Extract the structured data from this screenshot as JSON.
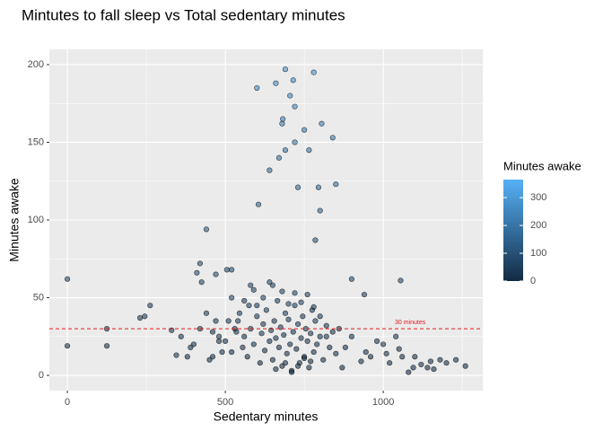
{
  "chart_data": {
    "type": "scatter",
    "title": "Mintutes to fall sleep vs Total sedentary minutes",
    "x_label": "Sedentary minutes",
    "y_label": "Minutes awake",
    "xlim": [
      -57,
      1315
    ],
    "ylim": [
      -9.8,
      209.8
    ],
    "xticks": [
      0,
      500,
      1000
    ],
    "yticks": [
      0,
      50,
      100,
      150,
      200
    ],
    "xminor": [
      250,
      750,
      1250
    ],
    "yminor": [
      25,
      75,
      125,
      175
    ],
    "grid": true,
    "hline": {
      "value": 30,
      "label": "30 minutes",
      "color": "#e41a1c"
    },
    "colorbar": {
      "title": "Minutes awake",
      "lim": [
        0,
        365
      ],
      "ticks": [
        0,
        100,
        200,
        300
      ],
      "low": "#132B43",
      "high": "#56B1F7"
    },
    "x": [
      0,
      0,
      125,
      125,
      230,
      245,
      262,
      330,
      345,
      390,
      410,
      420,
      425,
      440,
      450,
      460,
      470,
      480,
      505,
      520,
      530,
      600,
      605,
      640,
      660,
      670,
      680,
      682,
      690,
      690,
      705,
      715,
      720,
      720,
      730,
      750,
      765,
      780,
      785,
      795,
      800,
      805,
      840,
      850,
      900,
      940,
      1055,
      1100,
      1150,
      1200,
      1230,
      1260,
      1000,
      1010,
      1020,
      1040,
      1050,
      1060,
      1080,
      1095,
      1120,
      1140,
      1160,
      1180,
      960,
      980,
      930,
      945,
      900,
      880,
      870,
      860,
      500,
      510,
      520,
      535,
      545,
      555,
      560,
      570,
      575,
      580,
      590,
      600,
      610,
      615,
      620,
      625,
      630,
      640,
      645,
      650,
      655,
      660,
      665,
      670,
      675,
      680,
      685,
      690,
      695,
      700,
      705,
      710,
      715,
      720,
      725,
      730,
      735,
      740,
      745,
      750,
      755,
      760,
      765,
      770,
      775,
      780,
      785,
      790,
      800,
      810,
      820,
      830,
      840,
      850,
      560,
      590,
      620,
      650,
      680,
      700,
      720,
      740,
      760,
      780,
      800,
      820,
      660,
      690,
      710,
      730,
      750,
      770,
      640,
      600,
      580,
      540,
      520,
      480,
      470,
      490,
      460,
      440,
      420,
      400,
      380,
      360
    ],
    "values": [
      62,
      19,
      30,
      19,
      37,
      38,
      45,
      29,
      13,
      18,
      66,
      72,
      60,
      94,
      10,
      12,
      65,
      25,
      68,
      68,
      30,
      185,
      110,
      132,
      188,
      140,
      162,
      165,
      197,
      145,
      180,
      190,
      150,
      173,
      121,
      158,
      145,
      195,
      87,
      121,
      106,
      162,
      153,
      123,
      62,
      52,
      61,
      12,
      9,
      8,
      10,
      6,
      20,
      14,
      8,
      25,
      17,
      12,
      2,
      5,
      7,
      5,
      4,
      10,
      12,
      22,
      9,
      15,
      25,
      18,
      5,
      30,
      22,
      35,
      15,
      28,
      40,
      18,
      25,
      12,
      45,
      30,
      20,
      38,
      8,
      27,
      33,
      16,
      42,
      22,
      29,
      10,
      35,
      24,
      48,
      18,
      31,
      6,
      26,
      40,
      14,
      36,
      20,
      3,
      28,
      45,
      17,
      33,
      8,
      24,
      38,
      12,
      30,
      22,
      5,
      27,
      42,
      15,
      35,
      20,
      25,
      10,
      32,
      18,
      28,
      14,
      48,
      55,
      50,
      58,
      54,
      46,
      53,
      47,
      52,
      44,
      38,
      25,
      4,
      8,
      2,
      6,
      11,
      9,
      60,
      45,
      58,
      35,
      50,
      22,
      35,
      15,
      28,
      40,
      30,
      20,
      12,
      25
    ],
    "color_values": [
      80,
      25,
      40,
      28,
      50,
      52,
      60,
      38,
      20,
      25,
      90,
      95,
      80,
      130,
      15,
      18,
      85,
      35,
      90,
      92,
      40,
      260,
      150,
      180,
      270,
      190,
      220,
      230,
      280,
      200,
      250,
      270,
      210,
      240,
      170,
      220,
      200,
      290,
      120,
      170,
      150,
      230,
      210,
      180,
      85,
      70,
      80,
      18,
      14,
      12,
      15,
      10,
      28,
      20,
      12,
      35,
      24,
      18,
      5,
      8,
      10,
      8,
      6,
      15,
      18,
      30,
      13,
      20,
      35,
      25,
      8,
      40,
      30,
      48,
      20,
      38,
      55,
      25,
      34,
      16,
      60,
      40,
      27,
      52,
      11,
      37,
      45,
      22,
      57,
      30,
      40,
      14,
      48,
      33,
      65,
      25,
      42,
      9,
      35,
      55,
      19,
      49,
      27,
      5,
      38,
      61,
      23,
      45,
      11,
      33,
      52,
      16,
      41,
      30,
      7,
      37,
      57,
      20,
      48,
      27,
      34,
      14,
      44,
      25,
      38,
      19,
      65,
      75,
      68,
      78,
      73,
      62,
      72,
      64,
      70,
      60,
      52,
      34,
      6,
      11,
      3,
      8,
      15,
      12,
      81,
      61,
      78,
      48,
      68,
      30,
      48,
      20,
      38,
      54,
      41,
      27,
      16,
      34
    ]
  }
}
